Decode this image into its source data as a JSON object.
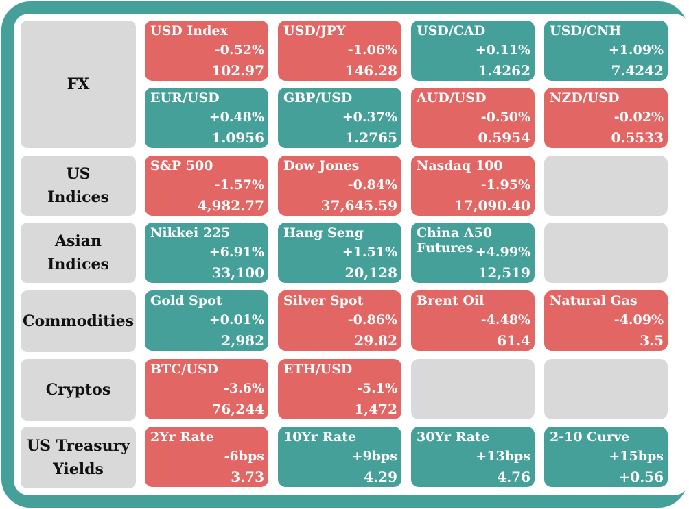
{
  "colors": {
    "frame": "#45a09a",
    "up": "#45a09a",
    "down": "#e16664",
    "empty": "#d9d9d9",
    "label_bg": "#d9d9d9"
  },
  "rows": [
    {
      "label": "FX",
      "cards": [
        {
          "name": "USD Index",
          "change": "-0.52%",
          "value": "102.97",
          "dir": "down"
        },
        {
          "name": "USD/JPY",
          "change": "-1.06%",
          "value": "146.28",
          "dir": "down"
        },
        {
          "name": "USD/CAD",
          "change": "+0.11%",
          "value": "1.4262",
          "dir": "up"
        },
        {
          "name": "USD/CNH",
          "change": "+1.09%",
          "value": "7.4242",
          "dir": "up"
        },
        {
          "name": "EUR/USD",
          "change": "+0.48%",
          "value": "1.0956",
          "dir": "up"
        },
        {
          "name": "GBP/USD",
          "change": "+0.37%",
          "value": "1.2765",
          "dir": "up"
        },
        {
          "name": "AUD/USD",
          "change": "-0.50%",
          "value": "0.5954",
          "dir": "down"
        },
        {
          "name": "NZD/USD",
          "change": "-0.02%",
          "value": "0.5533",
          "dir": "down"
        }
      ]
    },
    {
      "label": "US Indices",
      "cards": [
        {
          "name": "S&P 500",
          "change": "-1.57%",
          "value": "4,982.77",
          "dir": "down"
        },
        {
          "name": "Dow Jones",
          "change": "-0.84%",
          "value": "37,645.59",
          "dir": "down"
        },
        {
          "name": "Nasdaq 100",
          "change": "-1.95%",
          "value": "17,090.40",
          "dir": "down"
        },
        {
          "name": "",
          "change": "",
          "value": "",
          "dir": "empty"
        }
      ]
    },
    {
      "label": "Asian Indices",
      "cards": [
        {
          "name": "Nikkei 225",
          "change": "+6.91%",
          "value": "33,100",
          "dir": "up"
        },
        {
          "name": "Hang Seng",
          "change": "+1.51%",
          "value": "20,128",
          "dir": "up"
        },
        {
          "name": "China A50 Futures",
          "change": "+4.99%",
          "value": "12,519",
          "dir": "up"
        },
        {
          "name": "",
          "change": "",
          "value": "",
          "dir": "empty"
        }
      ]
    },
    {
      "label": "Commodities",
      "cards": [
        {
          "name": "Gold Spot",
          "change": "+0.01%",
          "value": "2,982",
          "dir": "up"
        },
        {
          "name": "Silver Spot",
          "change": "-0.86%",
          "value": "29.82",
          "dir": "down"
        },
        {
          "name": "Brent Oil",
          "change": "-4.48%",
          "value": "61.4",
          "dir": "down"
        },
        {
          "name": "Natural Gas",
          "change": "-4.09%",
          "value": "3.5",
          "dir": "down"
        }
      ]
    },
    {
      "label": "Cryptos",
      "cards": [
        {
          "name": "BTC/USD",
          "change": "-3.6%",
          "value": "76,244",
          "dir": "down"
        },
        {
          "name": "ETH/USD",
          "change": "-5.1%",
          "value": "1,472",
          "dir": "down"
        },
        {
          "name": "",
          "change": "",
          "value": "",
          "dir": "empty"
        },
        {
          "name": "",
          "change": "",
          "value": "",
          "dir": "empty"
        }
      ]
    },
    {
      "label": "US Treasury Yields",
      "cards": [
        {
          "name": "2Yr Rate",
          "change": "-6bps",
          "value": "3.73",
          "dir": "down"
        },
        {
          "name": "10Yr Rate",
          "change": "+9bps",
          "value": "4.29",
          "dir": "up"
        },
        {
          "name": "30Yr Rate",
          "change": "+13bps",
          "value": "4.76",
          "dir": "up"
        },
        {
          "name": "2-10 Curve",
          "change": "+15bps",
          "value": "+0.56",
          "dir": "up"
        }
      ]
    }
  ]
}
